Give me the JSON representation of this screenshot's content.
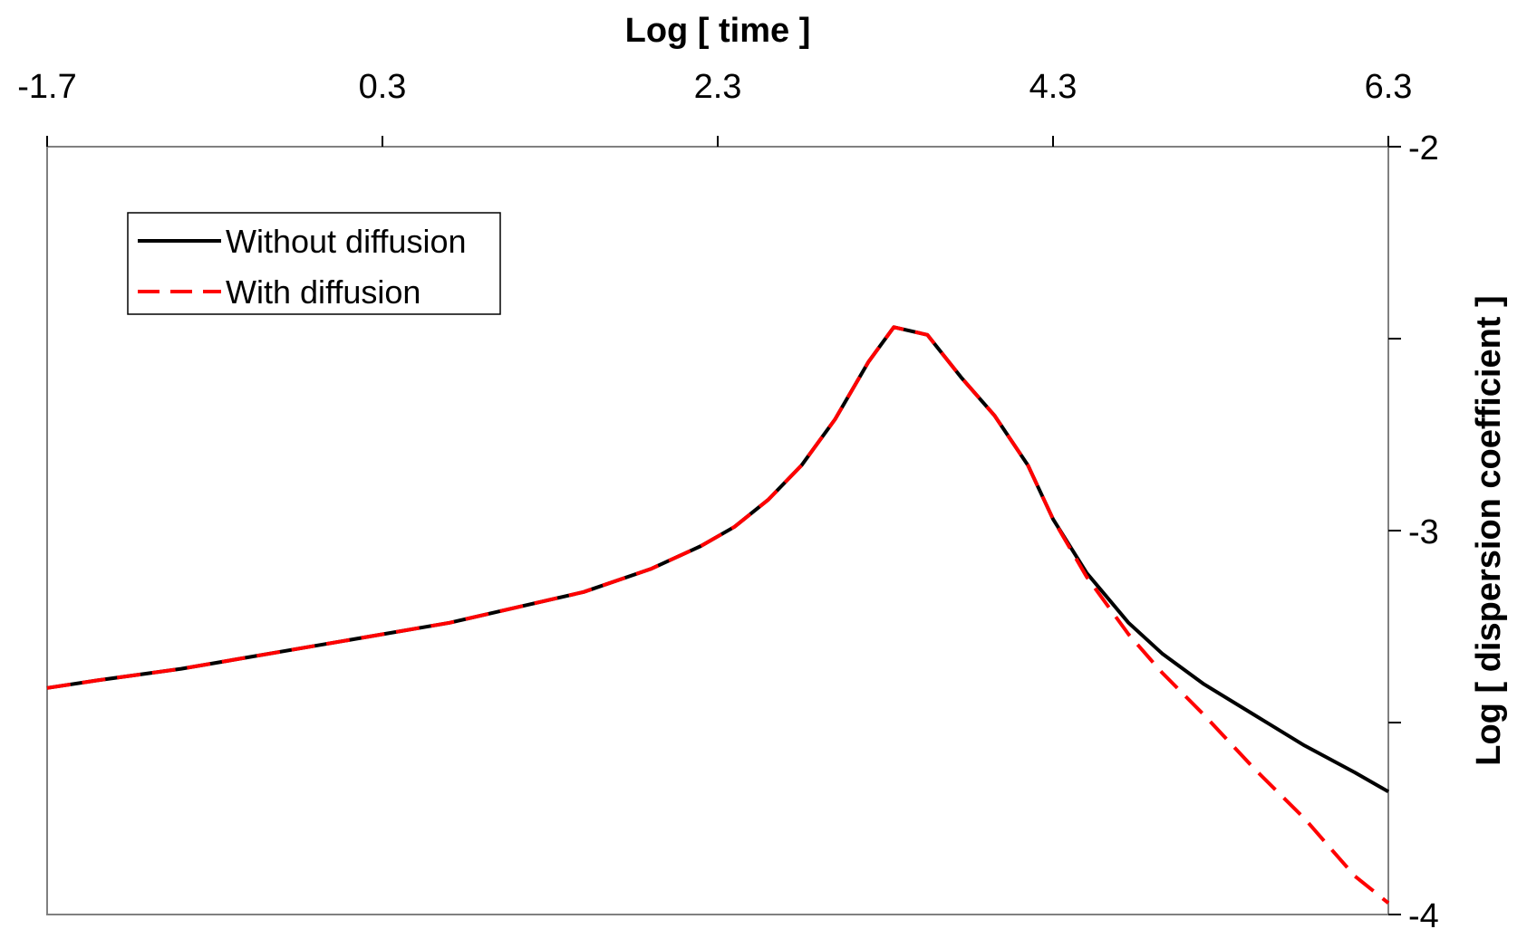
{
  "chart_data": {
    "type": "line",
    "xlabel": "Log [ time ]",
    "ylabel": "Log [ dispersion coefficient ]",
    "x_axis_position": "top",
    "y_axis_position": "right",
    "xlim": [
      -1.7,
      6.3
    ],
    "ylim": [
      -4,
      -2
    ],
    "x_ticks": [
      -1.7,
      0.3,
      2.3,
      4.3,
      6.3
    ],
    "x_tick_labels": [
      "-1.7",
      "0.3",
      "2.3",
      "4.3",
      "6.3"
    ],
    "y_ticks": [
      -2,
      -2.5,
      -3,
      -3.5,
      -4
    ],
    "y_tick_labels": [
      "-2",
      "",
      "-3",
      "",
      "-4"
    ],
    "grid": false,
    "legend_position": "top-left",
    "series": [
      {
        "name": "Without diffusion",
        "color": "#000000",
        "style": "solid",
        "x": [
          -1.7,
          -1.4,
          -0.9,
          -0.5,
          -0.1,
          0.3,
          0.7,
          1.1,
          1.5,
          1.9,
          2.2,
          2.4,
          2.6,
          2.8,
          3.0,
          3.2,
          3.35,
          3.55,
          3.75,
          3.95,
          4.15,
          4.3,
          4.5,
          4.75,
          4.95,
          5.2,
          5.5,
          5.8,
          6.1,
          6.3
        ],
        "y": [
          -3.41,
          -3.39,
          -3.36,
          -3.33,
          -3.3,
          -3.27,
          -3.24,
          -3.2,
          -3.16,
          -3.1,
          -3.04,
          -2.99,
          -2.92,
          -2.83,
          -2.71,
          -2.56,
          -2.47,
          -2.49,
          -2.6,
          -2.7,
          -2.83,
          -2.97,
          -3.11,
          -3.24,
          -3.32,
          -3.4,
          -3.48,
          -3.56,
          -3.63,
          -3.68
        ]
      },
      {
        "name": "With diffusion",
        "color": "#ff0000",
        "style": "dashed",
        "x": [
          -1.7,
          -1.4,
          -0.9,
          -0.5,
          -0.1,
          0.3,
          0.7,
          1.1,
          1.5,
          1.9,
          2.2,
          2.4,
          2.6,
          2.8,
          3.0,
          3.2,
          3.35,
          3.55,
          3.75,
          3.95,
          4.15,
          4.3,
          4.5,
          4.75,
          4.95,
          5.2,
          5.5,
          5.8,
          6.1,
          6.3
        ],
        "y": [
          -3.41,
          -3.39,
          -3.36,
          -3.33,
          -3.3,
          -3.27,
          -3.24,
          -3.2,
          -3.16,
          -3.1,
          -3.04,
          -2.99,
          -2.92,
          -2.83,
          -2.71,
          -2.56,
          -2.47,
          -2.49,
          -2.6,
          -2.7,
          -2.83,
          -2.97,
          -3.12,
          -3.27,
          -3.37,
          -3.48,
          -3.62,
          -3.75,
          -3.9,
          -3.97
        ]
      }
    ]
  }
}
